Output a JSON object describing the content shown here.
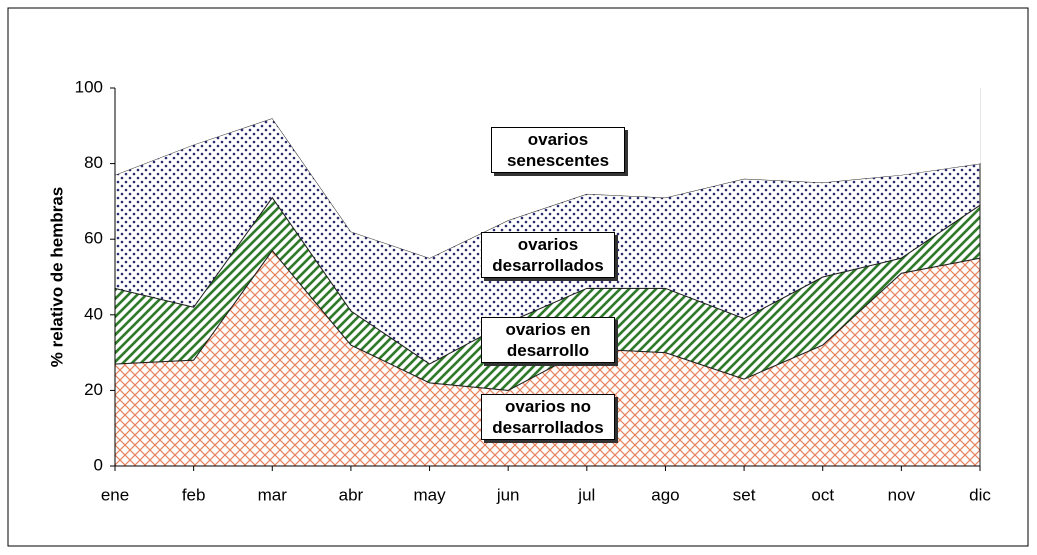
{
  "chart_data": {
    "type": "stacked_area",
    "y_label": "% relativo de hembras",
    "categories": [
      "ene",
      "feb",
      "mar",
      "abr",
      "may",
      "jun",
      "jul",
      "ago",
      "set",
      "oct",
      "nov",
      "dic"
    ],
    "series": [
      {
        "name": "ovarios no desarrollados",
        "color": "#e8825a",
        "values": [
          27,
          28,
          57,
          32,
          22,
          20,
          31,
          30,
          23,
          32,
          51,
          55
        ]
      },
      {
        "name": "ovarios en desarrollo",
        "color": "#2f7a2a",
        "values": [
          20,
          14,
          14,
          9,
          5,
          18,
          16,
          17,
          16,
          18,
          4,
          14
        ]
      },
      {
        "name": "ovarios desarrollados",
        "color": "#2a2a6e",
        "values": [
          30,
          43,
          21,
          21,
          28,
          27,
          25,
          24,
          37,
          25,
          22,
          11
        ]
      },
      {
        "name": "ovarios senescentes",
        "color": "#ffffff",
        "values": [
          23,
          15,
          8,
          38,
          45,
          35,
          28,
          29,
          24,
          25,
          23,
          20
        ]
      }
    ],
    "ylim": [
      0,
      100
    ],
    "yticks": [
      0,
      20,
      40,
      60,
      80,
      100
    ],
    "grid": true
  }
}
